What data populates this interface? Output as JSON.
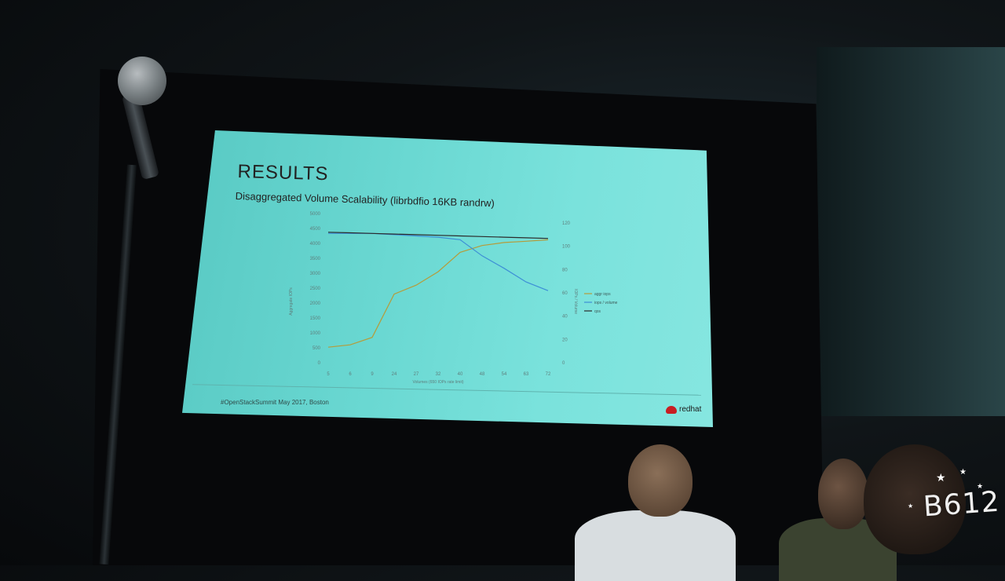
{
  "slide": {
    "title": "RESULTS",
    "subtitle": "Disaggregated Volume Scalability (librbdfio 16KB randrw)",
    "footer": "#OpenStackSummit May 2017, Boston",
    "brand": "redhat",
    "brand_color": "#c81e23",
    "background_color": "#6ad8d2"
  },
  "chart_data": {
    "type": "line",
    "categories": [
      "5",
      "6",
      "9",
      "24",
      "27",
      "32",
      "40",
      "48",
      "54",
      "63",
      "72"
    ],
    "left_axis": {
      "ylabel": "Aggregate IOPs",
      "ticks": [
        "5000",
        "4500",
        "4000",
        "3500",
        "3000",
        "2500",
        "2000",
        "1500",
        "1000",
        "500",
        "0"
      ],
      "ylim": [
        0,
        5000
      ]
    },
    "right_axis": {
      "ylabel": "IOPs / Volume",
      "ticks": [
        "120",
        "100",
        "80",
        "60",
        "40",
        "20",
        "0"
      ],
      "ylim": [
        0,
        120
      ]
    },
    "xlabel": "Volumes (650 IOPs rate limit)",
    "legend_position": "right",
    "series": [
      {
        "name": "aggr iops",
        "axis": "left",
        "color": "#b59c3a",
        "values": [
          520,
          600,
          850,
          2300,
          2600,
          3050,
          3700,
          3930,
          4030,
          4070,
          4120
        ]
      },
      {
        "name": "iops / volume",
        "axis": "right",
        "color": "#3d8fd6",
        "values": [
          104,
          104,
          104,
          103,
          102,
          101,
          99,
          86,
          76,
          65,
          58
        ]
      },
      {
        "name": "qos",
        "axis": "right",
        "color": "#2b2b2b",
        "values": [
          105,
          104.5,
          104,
          103.5,
          103,
          102.5,
          102,
          101.5,
          101,
          100.5,
          100
        ]
      }
    ]
  },
  "watermark": {
    "text": "B612"
  }
}
